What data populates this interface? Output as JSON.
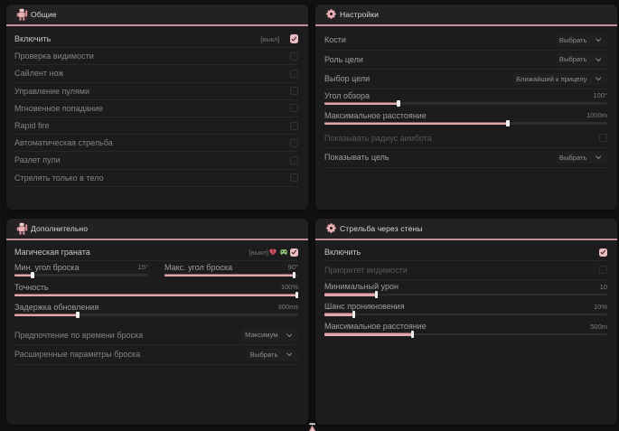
{
  "accent": {
    "pink": "#c28f96",
    "slider_fill": "#dfa7aa",
    "checkbox_checked": "#e9bcc1",
    "panel_bg": "#1c1c1c",
    "header_bg": "#242123",
    "page_bg": "#121212"
  },
  "panels": [
    {
      "id": "general",
      "title": "Общие",
      "icon": "bot-icon",
      "rows": [
        {
          "type": "toggle",
          "label": "Включить",
          "label_style": "bright",
          "state_text": "[выкл]",
          "checked": true
        },
        {
          "type": "toggle",
          "label": "Проверка видимости",
          "label_style": "mid",
          "checked": false
        },
        {
          "type": "toggle",
          "label": "Сайлент нож",
          "label_style": "mid",
          "checked": false
        },
        {
          "type": "toggle",
          "label": "Управление пулями",
          "label_style": "mid",
          "checked": false
        },
        {
          "type": "toggle",
          "label": "Мгновенное попадание",
          "label_style": "mid",
          "checked": false
        },
        {
          "type": "toggle",
          "label": "Rapid fire",
          "label_style": "mid",
          "checked": false
        },
        {
          "type": "toggle",
          "label": "Автоматическая стрельба",
          "label_style": "mid",
          "checked": false
        },
        {
          "type": "toggle",
          "label": "Разлет пули",
          "label_style": "mid",
          "checked": false
        },
        {
          "type": "toggle",
          "label": "Стрелять только в тело",
          "label_style": "mid",
          "checked": false
        }
      ]
    },
    {
      "id": "settings",
      "title": "Настройки",
      "icon": "gear-icon",
      "rows": [
        {
          "type": "select",
          "label": "Кости",
          "value": "Выбрать"
        },
        {
          "type": "select",
          "label": "Роль цели",
          "value": "Выбрать"
        },
        {
          "type": "select",
          "label": "Выбор цели",
          "value": "Ближайший к прицелу"
        },
        {
          "type": "slider",
          "label": "Угол обзора",
          "value": "100°",
          "percent": 26
        },
        {
          "type": "slider",
          "label": "Максимальное расстояние",
          "value": "1000m",
          "percent": 65
        },
        {
          "type": "toggle",
          "label": "Показывать радиус аимбота",
          "label_style": "dim",
          "checked": false,
          "disabled": true
        },
        {
          "type": "select",
          "label": "Показывать цель",
          "value": "Выбрать"
        }
      ]
    },
    {
      "id": "advanced",
      "title": "Дополнительно",
      "icon": "bot-icon",
      "rows": [
        {
          "type": "toggle",
          "label": "Магическая граната",
          "label_style": "bright",
          "state_text": "[выкл]",
          "icons": [
            "broken-heart-icon",
            "gamepad-icon"
          ],
          "checked": true,
          "first": true
        },
        {
          "type": "slider-pair",
          "sliders": [
            {
              "label": "Мин. угол броска",
              "value": "15°",
              "percent": 12.5
            },
            {
              "label": "Макс. угол броска",
              "value": "90°",
              "percent": 98
            }
          ]
        },
        {
          "type": "slider",
          "label": "Точность",
          "value": "100%",
          "percent": 100
        },
        {
          "type": "slider",
          "label": "Задержка обновления",
          "value": "300ms",
          "percent": 22
        },
        {
          "type": "select",
          "label": "Предпочтение по времени броска",
          "value": "Максимум",
          "label_style": "mid",
          "gap_before": true
        },
        {
          "type": "select",
          "label": "Расширенные параметры броска",
          "value": "Выбрать",
          "label_style": "mid"
        }
      ]
    },
    {
      "id": "wallbang",
      "title": "Стрельба через стены",
      "icon": "gear-icon",
      "rows": [
        {
          "type": "toggle",
          "label": "Включить",
          "label_style": "bright",
          "checked": true,
          "first": true
        },
        {
          "type": "toggle",
          "label": "Приоритет видимости",
          "label_style": "dim",
          "checked": false,
          "disabled": true
        },
        {
          "type": "slider",
          "label": "Минимальный урон",
          "value": "10",
          "percent": 18
        },
        {
          "type": "slider",
          "label": "Шанс проникновения",
          "value": "10%",
          "percent": 10
        },
        {
          "type": "slider",
          "label": "Максимальное расстояние",
          "value": "500m",
          "percent": 31
        }
      ]
    }
  ],
  "footer": {
    "indicator": "scroll-up-indicator"
  }
}
